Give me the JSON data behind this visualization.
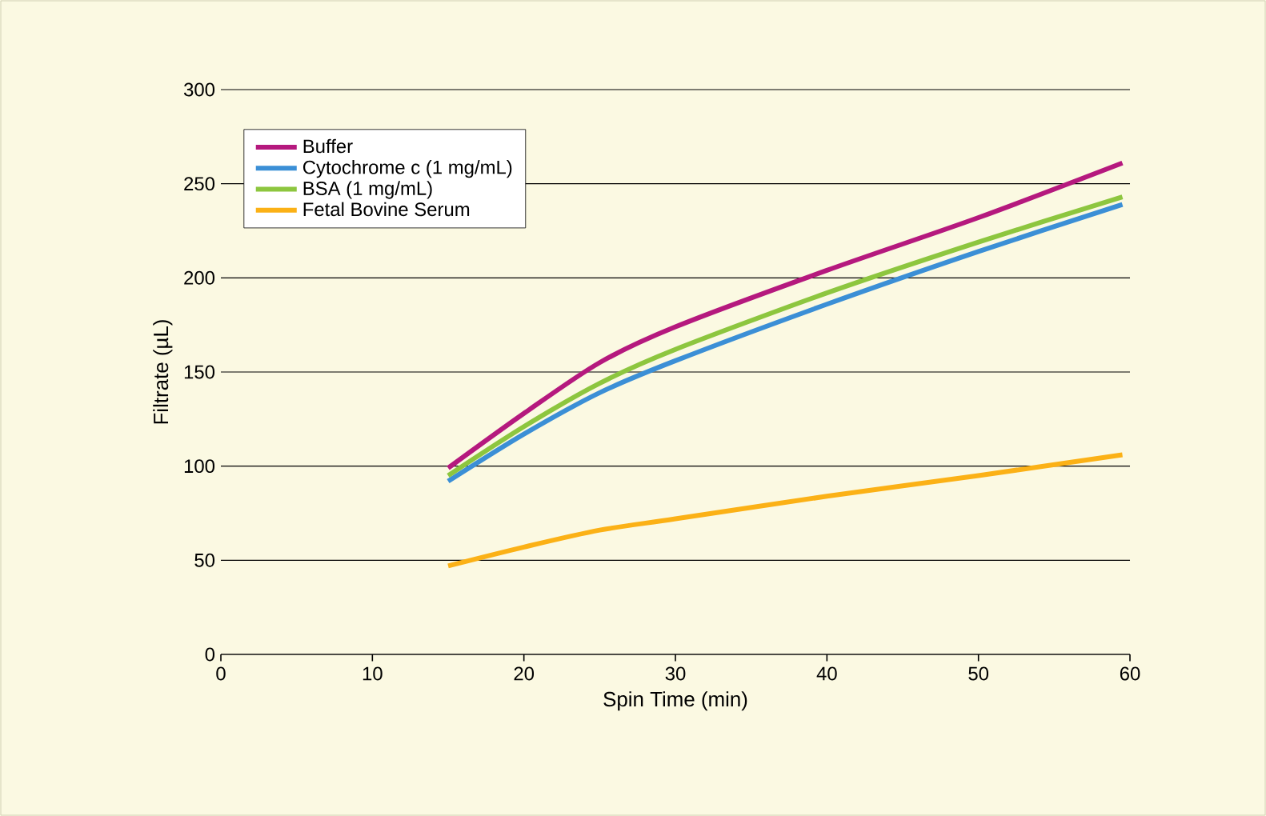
{
  "chart_data": {
    "type": "line",
    "xlabel": "Spin Time (min)",
    "ylabel": "Filtrate (µL)",
    "xlim": [
      0,
      60
    ],
    "xticks": [
      0,
      10,
      20,
      30,
      40,
      50,
      60
    ],
    "ylim": [
      0,
      300
    ],
    "yticks": [
      0,
      50,
      100,
      150,
      200,
      250,
      300
    ],
    "grid": "y",
    "legend": "top left",
    "marker": "none",
    "line_style": "solid",
    "series": [
      {
        "name": "Buffer",
        "color": "#b5197e",
        "x": [
          15,
          20,
          25,
          30,
          40,
          50,
          59.5
        ],
        "values": [
          99,
          128,
          155,
          174,
          204,
          232,
          261
        ]
      },
      {
        "name": "Cytochrome c (1 mg/mL)",
        "color": "#3b8fd6",
        "x": [
          15,
          20,
          25,
          30,
          40,
          50,
          59.5
        ],
        "values": [
          92,
          117,
          139,
          156,
          186,
          214,
          239
        ]
      },
      {
        "name": "BSA (1 mg/mL)",
        "color": "#8dc63f",
        "x": [
          15,
          20,
          25,
          30,
          40,
          50,
          59.5
        ],
        "values": [
          95,
          121,
          144,
          162,
          192,
          219,
          243
        ]
      },
      {
        "name": "Fetal Bovine Serum",
        "color": "#fbb116",
        "x": [
          15,
          20,
          25,
          30,
          40,
          50,
          59.5
        ],
        "values": [
          47,
          57,
          66,
          72,
          84,
          95,
          106
        ]
      }
    ]
  }
}
